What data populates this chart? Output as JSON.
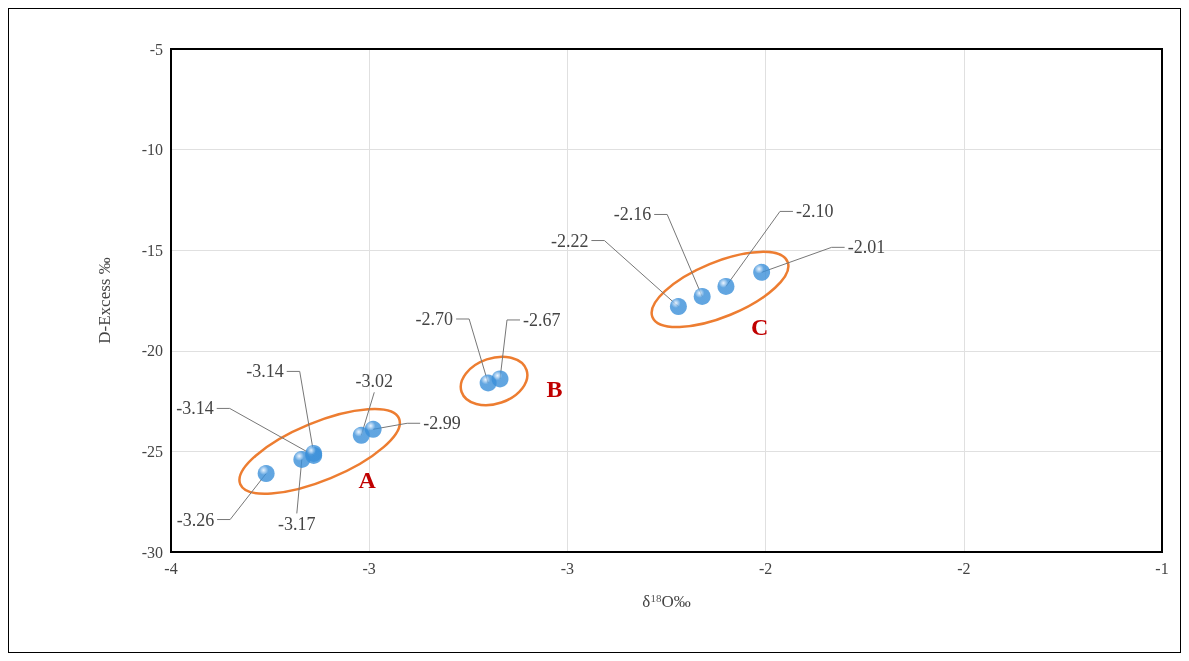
{
  "chart_data": {
    "type": "scatter",
    "xlabel": "δ$^{18}$O‰",
    "ylabel": "D-Excess ‰",
    "xlim": [
      -3.5,
      -1
    ],
    "xticks": [
      {
        "value": -3.5,
        "label": "-4"
      },
      {
        "value": -3,
        "label": "-3"
      },
      {
        "value": -2.5,
        "label": "-3"
      },
      {
        "value": -2,
        "label": "-2"
      },
      {
        "value": -1.5,
        "label": "-2"
      },
      {
        "value": -1,
        "label": "-1"
      }
    ],
    "ylim": [
      -30,
      -5
    ],
    "yticks": [
      -30,
      -25,
      -20,
      -15,
      -10,
      -5
    ],
    "grid": true,
    "marker": "circle",
    "series": [
      {
        "color": "#3a8fd9",
        "x": [
          -3.26,
          -3.17,
          -3.14,
          -3.14,
          -3.02,
          -2.99,
          -2.7,
          -2.67,
          -2.22,
          -2.16,
          -2.1,
          -2.01
        ],
        "values": [
          -26.1,
          -25.4,
          -25.2,
          -25.1,
          -24.2,
          -23.9,
          -21.6,
          -21.4,
          -17.8,
          -17.3,
          -16.8,
          -16.1
        ]
      }
    ],
    "annotations": [
      "A",
      "B",
      "C",
      {
        "text": "-3.26",
        "x": -3.26,
        "y": -26.1
      },
      {
        "text": "-3.17",
        "x": -3.17,
        "y": -25.4
      },
      {
        "text": "-3.14",
        "x": -3.14,
        "y": -25.2
      },
      {
        "text": "-3.14",
        "x": -3.14,
        "y": -25.1
      },
      {
        "text": "-3.02",
        "x": -3.02,
        "y": -24.2
      },
      {
        "text": "-2.99",
        "x": -2.99,
        "y": -23.9
      },
      {
        "text": "-2.70",
        "x": -2.7,
        "y": -21.6
      },
      {
        "text": "-2.67",
        "x": -2.67,
        "y": -21.4
      },
      {
        "text": "-2.22",
        "x": -2.22,
        "y": -17.8
      },
      {
        "text": "-2.16",
        "x": -2.16,
        "y": -17.3
      },
      {
        "text": "-2.10",
        "x": -2.1,
        "y": -16.8
      },
      {
        "text": "-2.01",
        "x": -2.01,
        "y": -16.1
      }
    ]
  }
}
